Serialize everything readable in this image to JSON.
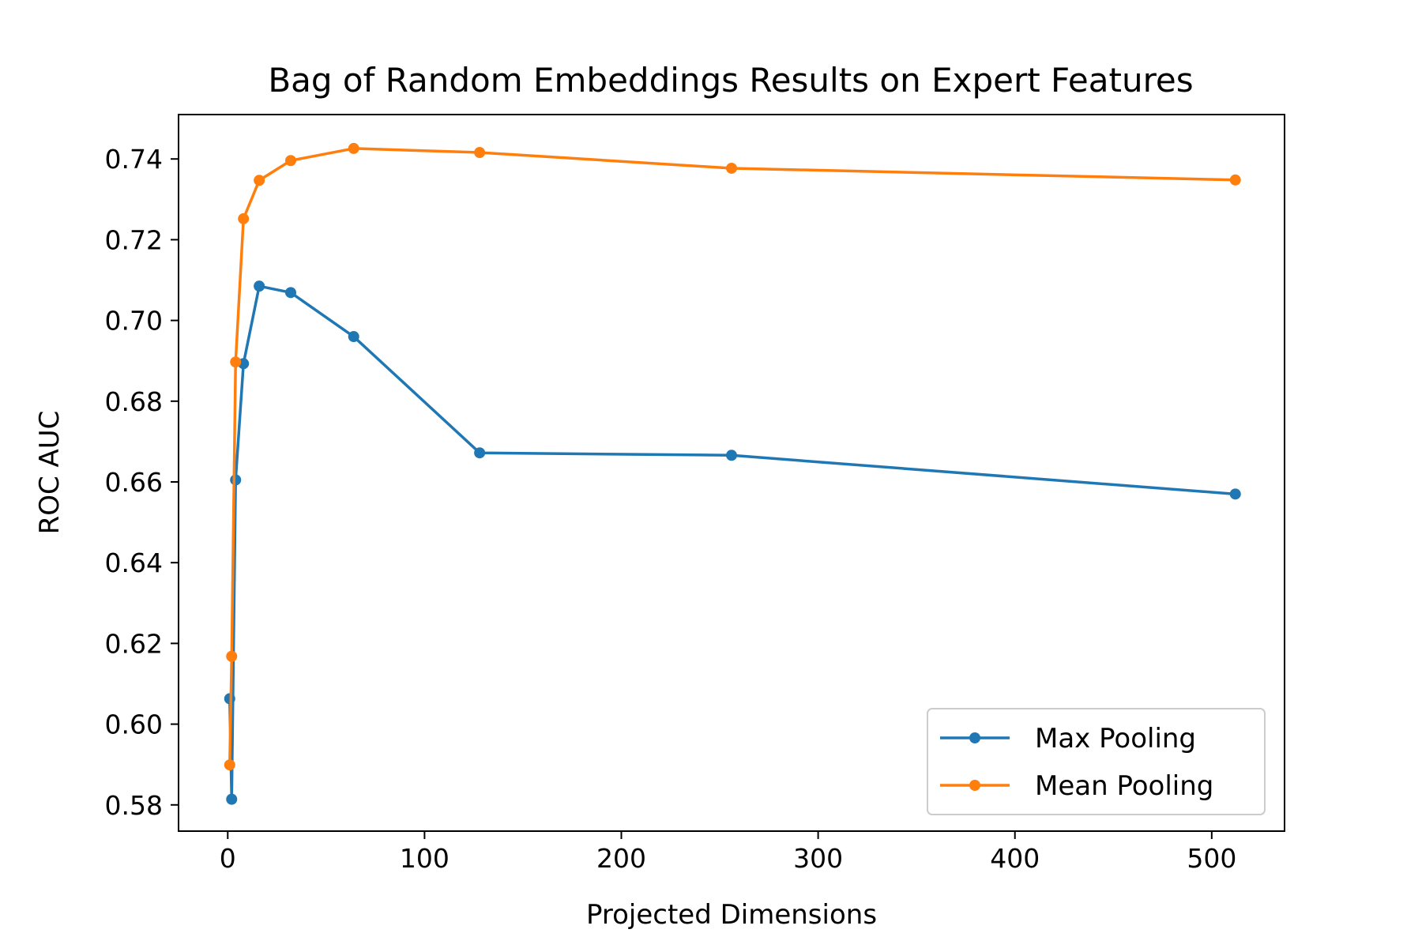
{
  "chart_data": {
    "type": "line",
    "title": "Bag of Random Embeddings Results on Expert Features",
    "xlabel": "Projected Dimensions",
    "ylabel": "ROC AUC",
    "xlim": [
      -25,
      537
    ],
    "ylim": [
      0.5735,
      0.751
    ],
    "xticks": [
      0,
      100,
      200,
      300,
      400,
      500
    ],
    "yticks": [
      0.58,
      0.6,
      0.62,
      0.64,
      0.66,
      0.68,
      0.7,
      0.72,
      0.74
    ],
    "xtick_labels": [
      "0",
      "100",
      "200",
      "300",
      "400",
      "500"
    ],
    "ytick_labels": [
      "0.58",
      "0.60",
      "0.62",
      "0.64",
      "0.66",
      "0.68",
      "0.70",
      "0.72",
      "0.74"
    ],
    "grid": false,
    "legend_position": "lower-right",
    "series": [
      {
        "name": "Max Pooling",
        "color": "#1f77b4",
        "x": [
          1,
          2,
          4,
          8,
          16,
          32,
          64,
          128,
          256,
          512
        ],
        "y": [
          0.6063,
          0.5814,
          0.6605,
          0.6893,
          0.7085,
          0.7069,
          0.696,
          0.6672,
          0.6666,
          0.657
        ]
      },
      {
        "name": "Mean Pooling",
        "color": "#ff7f0e",
        "x": [
          1,
          2,
          4,
          8,
          16,
          32,
          64,
          128,
          256,
          512
        ],
        "y": [
          0.5899,
          0.6168,
          0.6897,
          0.7252,
          0.7347,
          0.7396,
          0.7426,
          0.7416,
          0.7377,
          0.7348
        ]
      }
    ]
  }
}
